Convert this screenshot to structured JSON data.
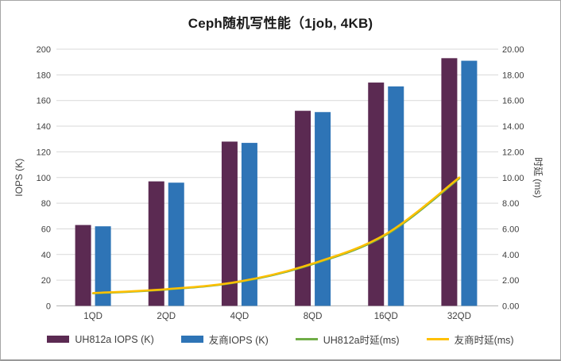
{
  "window": {
    "background": "#FFFFFF",
    "border_color": "#A6A6A6"
  },
  "chart_data": {
    "type": "bar",
    "subtype": "combo-bar-line-dual-axis",
    "title": "Ceph随机写性能（1job, 4KB)",
    "categories": [
      "1QD",
      "2QD",
      "4QD",
      "8QD",
      "16QD",
      "32QD"
    ],
    "series": [
      {
        "name": "UH812a IOPS (K)",
        "type": "bar",
        "axis": "left",
        "color": "#5B2A52",
        "values": [
          63,
          97,
          128,
          152,
          174,
          193
        ]
      },
      {
        "name": "友商IOPS (K)",
        "type": "bar",
        "axis": "left",
        "color": "#2E74B6",
        "values": [
          62,
          96,
          127,
          151,
          171,
          191
        ]
      },
      {
        "name": "UH812a时延(ms)",
        "type": "line",
        "axis": "right",
        "color": "#70AD47",
        "values": [
          0.97,
          1.27,
          1.87,
          3.25,
          5.52,
          9.92
        ]
      },
      {
        "name": "友商时延(ms)",
        "type": "line",
        "axis": "right",
        "color": "#FFC000",
        "values": [
          1.0,
          1.3,
          1.9,
          3.3,
          5.6,
          10.0
        ]
      }
    ],
    "left_axis": {
      "label": "IOPS (K)",
      "min": 0,
      "max": 200,
      "step": 20,
      "tick_labels": [
        "0",
        "20",
        "40",
        "60",
        "80",
        "100",
        "120",
        "140",
        "160",
        "180",
        "200"
      ]
    },
    "right_axis": {
      "label": "时延 (ms)",
      "min": 0,
      "max": 20,
      "step": 2,
      "tick_labels": [
        "0.00",
        "2.00",
        "4.00",
        "6.00",
        "8.00",
        "10.00",
        "12.00",
        "14.00",
        "16.00",
        "18.00",
        "20.00"
      ]
    },
    "grid": true,
    "gridline_color": "#D9D9D9",
    "axis_text_color": "#404040",
    "legend_position": "bottom"
  },
  "legend": {
    "items": [
      {
        "label": "UH812a IOPS (K)",
        "color": "#5B2A52",
        "swatch": "bar"
      },
      {
        "label": "友商IOPS (K)",
        "color": "#2E74B6",
        "swatch": "bar"
      },
      {
        "label": "UH812a时延(ms)",
        "color": "#70AD47",
        "swatch": "line"
      },
      {
        "label": "友商时延(ms)",
        "color": "#FFC000",
        "swatch": "line"
      }
    ]
  }
}
